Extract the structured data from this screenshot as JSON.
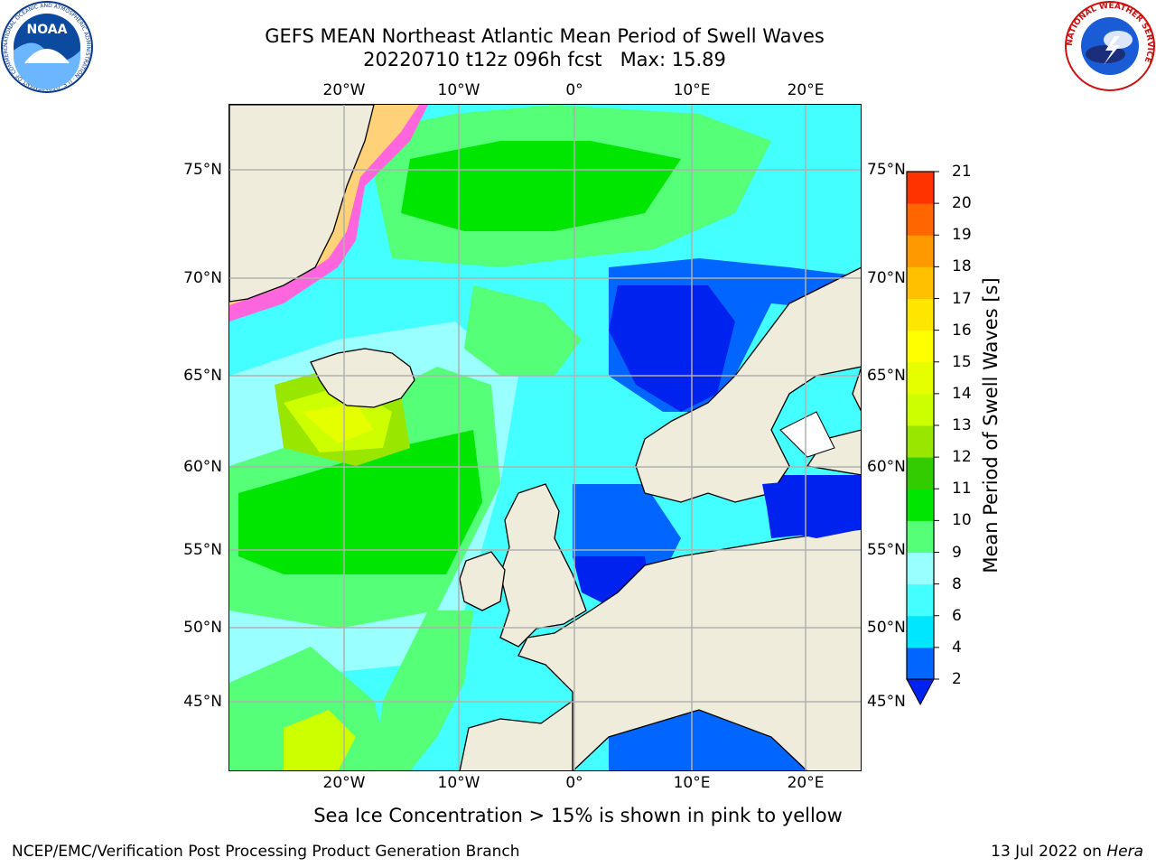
{
  "title": {
    "line1": "GEFS MEAN Northeast Atlantic Mean Period of Swell Waves",
    "line2": "20220710 t12z 096h fcst   Max: 15.89"
  },
  "map": {
    "lon_labels": [
      "20°W",
      "10°W",
      "0°",
      "10°E",
      "20°E"
    ],
    "lat_labels": [
      "75°N",
      "70°N",
      "65°N",
      "60°N",
      "55°N",
      "50°N",
      "45°N"
    ],
    "colors": {
      "land": "#efecdc",
      "grid": "#b0b0b0",
      "ice": [
        "#ffffff",
        "#ff66dd",
        "#ffd27a",
        "#ffe600"
      ]
    }
  },
  "colorbar": {
    "label": "Mean Period of Swell Waves [s]",
    "ticks": [
      "2",
      "4",
      "6",
      "8",
      "9",
      "10",
      "11",
      "12",
      "13",
      "14",
      "15",
      "16",
      "17",
      "18",
      "19",
      "20",
      "21"
    ],
    "colors": [
      "#0066ff",
      "#00e6ff",
      "#44ffff",
      "#99ffff",
      "#55ff77",
      "#00e600",
      "#33cc00",
      "#99e600",
      "#ccff00",
      "#e6ff00",
      "#ffff00",
      "#ffe600",
      "#ffc000",
      "#ff9900",
      "#ff6600",
      "#ff3300",
      "#ff0000"
    ],
    "under_color": "#0022ee"
  },
  "subtitle": "Sea Ice Concentration > 15% is shown in pink to yellow",
  "footer": {
    "left": "NCEP/EMC/Verification Post Processing Product Generation Branch",
    "date": "13 Jul 2022 on ",
    "host": "Hera"
  },
  "logos": {
    "noaa_text": "NOAA",
    "noaa_ring": "NATIONAL OCEANIC AND ATMOSPHERIC ADMINISTRATION · U.S. DEPARTMENT OF COMMERCE",
    "nws_ring": "NATIONAL WEATHER SERVICE"
  }
}
